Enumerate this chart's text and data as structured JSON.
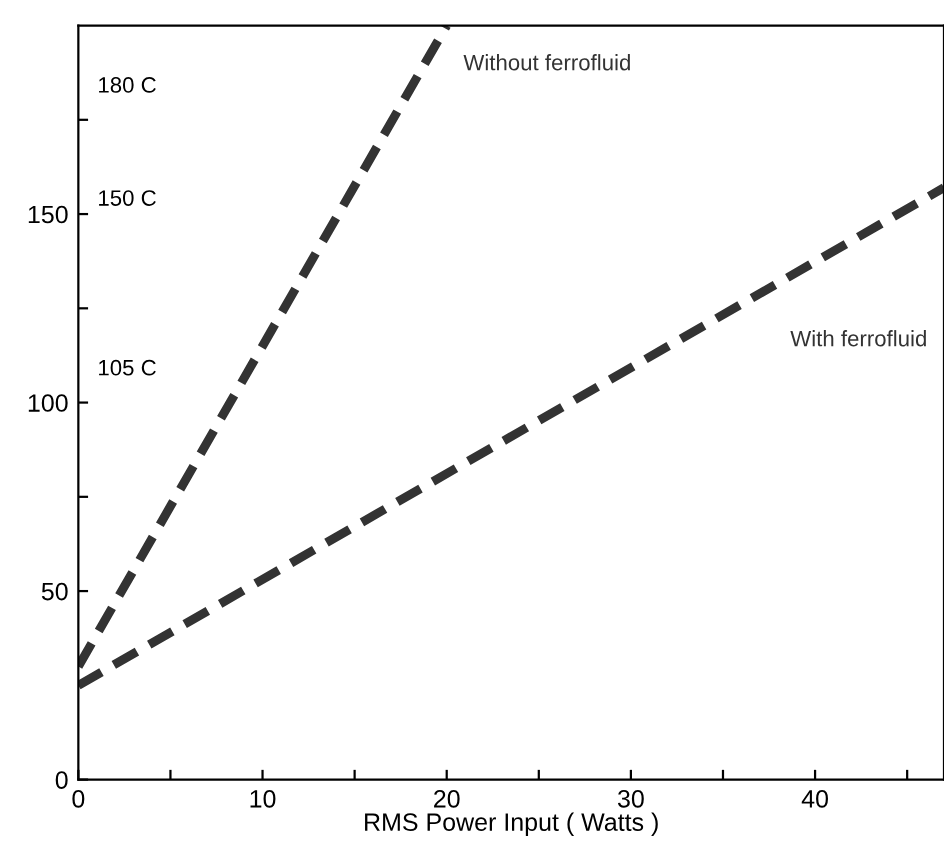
{
  "chart_data": {
    "type": "line",
    "xlabel": "RMS Power Input ( Watts )",
    "series": [
      {
        "name": "Without ferrofluid",
        "color": "#333333",
        "x": [
          0,
          20
        ],
        "values": [
          30,
          200
        ]
      },
      {
        "name": "With ferrofluid",
        "color": "#333333",
        "x": [
          0,
          47
        ],
        "values": [
          25,
          157
        ]
      }
    ],
    "xlim": [
      0,
      47
    ],
    "xticks": [
      0,
      {
        "value": 5,
        "label": null
      },
      10,
      {
        "value": 15,
        "label": null
      },
      20,
      {
        "value": 25,
        "label": null
      },
      30,
      {
        "value": 35,
        "label": null
      },
      40,
      {
        "value": 45,
        "label": null
      }
    ],
    "ylim": [
      0,
      200
    ],
    "yticks": [
      0,
      50,
      {
        "value": 75,
        "label": null
      },
      100,
      {
        "value": 125,
        "label": null
      },
      150,
      {
        "value": 175,
        "label": null
      }
    ],
    "annotations": [
      "180 C",
      "150 C",
      "105 C"
    ],
    "line_style": "dashed",
    "marker": "none",
    "grid": false,
    "legend": false
  }
}
